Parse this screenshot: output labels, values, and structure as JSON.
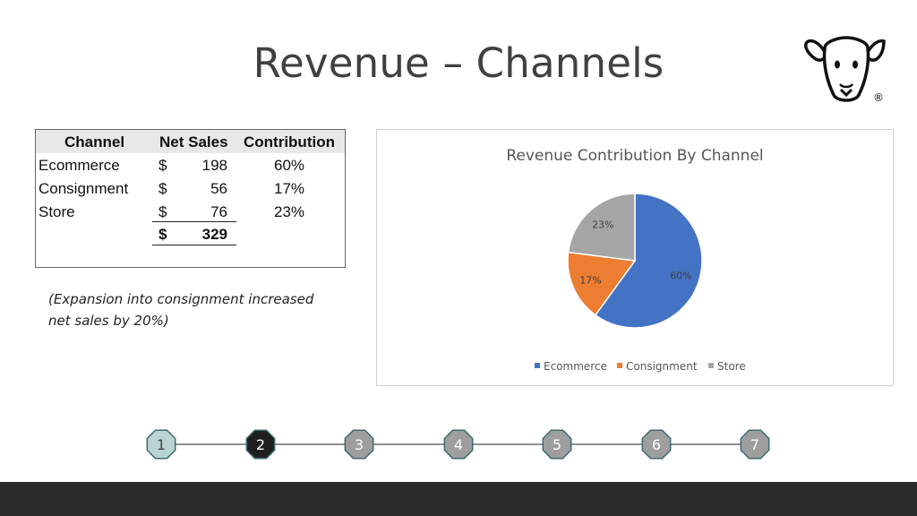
{
  "slide": {
    "title": "Revenue – Channels",
    "logo": {
      "icon": "sheep-head-logo",
      "mark": "®"
    }
  },
  "table": {
    "headers": [
      "Channel",
      "Net Sales",
      "Contribution"
    ],
    "rows": [
      {
        "channel": "Ecommerce",
        "currency": "$",
        "net_sales": "198",
        "contribution": "60%"
      },
      {
        "channel": "Consignment",
        "currency": "$",
        "net_sales": "56",
        "contribution": "17%"
      },
      {
        "channel": "Store",
        "currency": "$",
        "net_sales": "76",
        "contribution": "23%"
      }
    ],
    "total": {
      "currency": "$",
      "net_sales": "329"
    }
  },
  "note": {
    "line1": "(Expansion into consignment increased",
    "line2": "net sales by 20%)"
  },
  "chart_data": {
    "type": "pie",
    "title": "Revenue Contribution By Channel",
    "categories": [
      "Ecommerce",
      "Consignment",
      "Store"
    ],
    "values": [
      60,
      17,
      23
    ],
    "labels": [
      "60%",
      "17%",
      "23%"
    ],
    "colors": [
      "#4472c4",
      "#ed7d31",
      "#a5a5a5"
    ],
    "legend": "bottom"
  },
  "pager": {
    "pages": [
      "1",
      "2",
      "3",
      "4",
      "5",
      "6",
      "7"
    ],
    "current": "2",
    "active_color": "#1f1f1f",
    "inactive_color": "#9e9e9e",
    "first_color": "#b9d4d2"
  }
}
